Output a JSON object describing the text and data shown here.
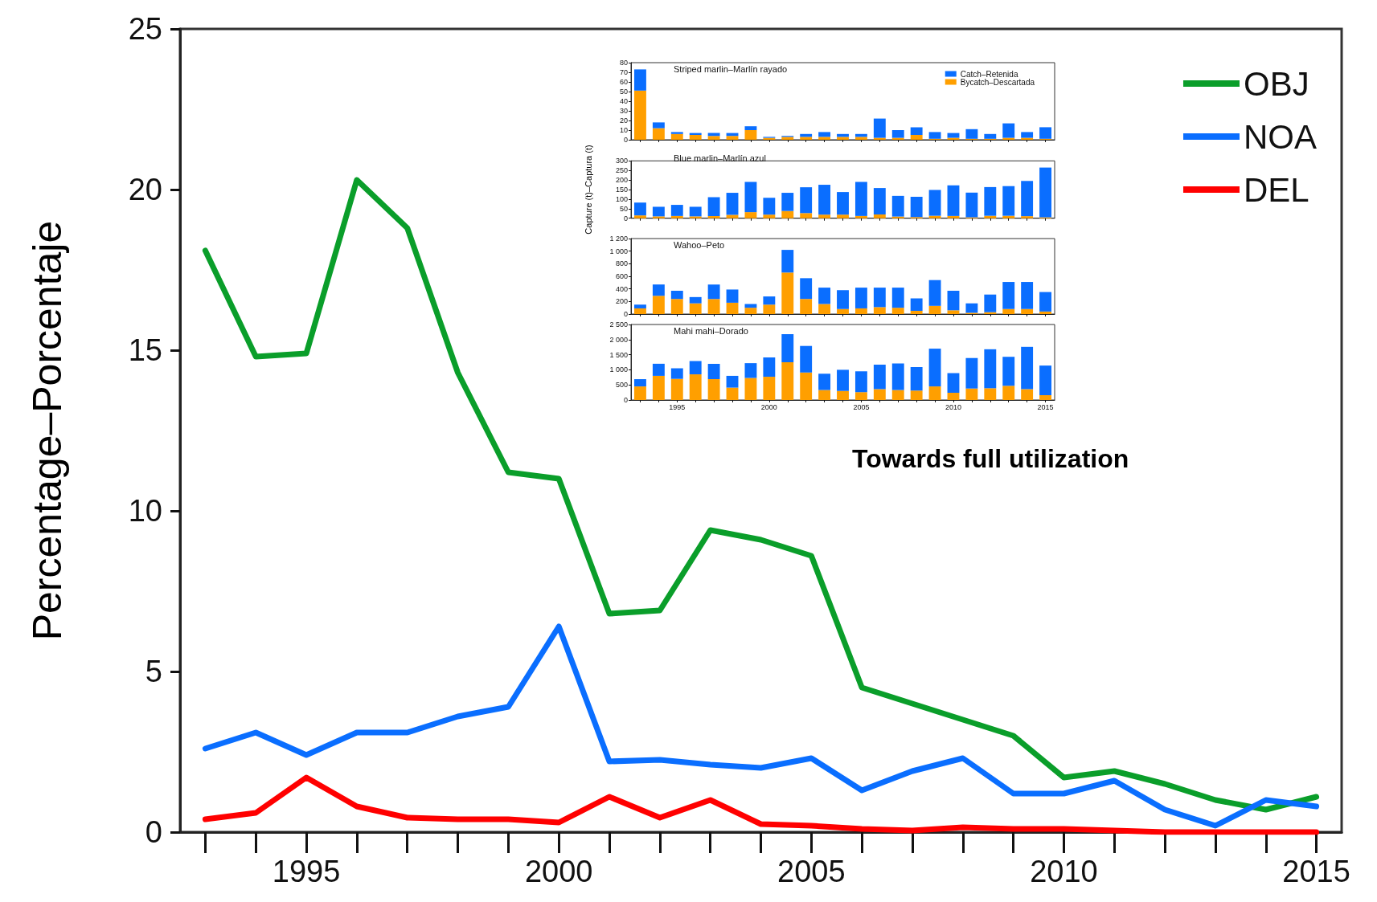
{
  "chart_data": [
    {
      "type": "line",
      "ylabel": "Percentage–Porcentaje",
      "categories": [
        null,
        null,
        "1995",
        null,
        null,
        null,
        null,
        "2000",
        null,
        null,
        null,
        null,
        "2005",
        null,
        null,
        null,
        null,
        "2010",
        null,
        null,
        null,
        null,
        "2015"
      ],
      "series": [
        {
          "name": "OBJ",
          "color": "#0a9e2a",
          "values": [
            18.1,
            14.8,
            14.9,
            20.3,
            18.8,
            14.3,
            11.2,
            11.0,
            6.8,
            6.9,
            9.4,
            9.1,
            8.6,
            4.5,
            4.0,
            3.5,
            3.0,
            1.7,
            1.9,
            1.5,
            1.0,
            0.7,
            1.1
          ]
        },
        {
          "name": "NOA",
          "color": "#0a6eff",
          "values": [
            2.6,
            3.1,
            2.4,
            3.1,
            3.1,
            3.6,
            3.9,
            6.4,
            2.2,
            2.25,
            2.1,
            2.0,
            2.3,
            1.3,
            1.9,
            2.3,
            1.2,
            1.2,
            1.6,
            0.7,
            0.2,
            1.0,
            0.8
          ]
        },
        {
          "name": "DEL",
          "color": "#ff0000",
          "values": [
            0.4,
            0.6,
            1.7,
            0.8,
            0.45,
            0.4,
            0.4,
            0.3,
            1.1,
            0.45,
            1.0,
            0.25,
            0.2,
            0.1,
            0.05,
            0.15,
            0.1,
            0.1,
            0.05,
            0.0,
            0.0,
            0.0,
            0.0
          ]
        }
      ],
      "ylim": [
        0,
        25
      ],
      "yticks": [
        0,
        5,
        10,
        15,
        20,
        25
      ],
      "grid": false,
      "legend": "top right",
      "marker": "none",
      "line_style": "solid",
      "annotations": [
        "Towards full utilization"
      ]
    },
    {
      "type": "bar",
      "stacked": true,
      "title": "Striped marlin–Marlín rayado",
      "categories": [
        null,
        null,
        "1995",
        null,
        null,
        null,
        null,
        "2000",
        null,
        null,
        null,
        null,
        "2005",
        null,
        null,
        null,
        null,
        "2010",
        null,
        null,
        null,
        null,
        "2015"
      ],
      "series": [
        {
          "name": "Bycatch–Descartada",
          "color": "#ff9f00",
          "values": [
            51,
            12,
            6,
            5,
            4,
            4,
            10,
            2,
            3,
            3,
            3,
            3,
            3,
            2,
            2,
            5,
            1,
            2,
            1,
            1,
            2,
            2,
            1
          ]
        },
        {
          "name": "Catch–Retenida",
          "color": "#0a6eff",
          "values": [
            22,
            6,
            2,
            2,
            3,
            3,
            4,
            1,
            1,
            3,
            5,
            3,
            3,
            20,
            8,
            8,
            7,
            5,
            10,
            5,
            15,
            6,
            12
          ]
        }
      ],
      "ylim": [
        0,
        80
      ],
      "yticks": [
        0,
        10,
        20,
        30,
        40,
        50,
        60,
        70,
        80
      ],
      "grid": false,
      "legend": "top right",
      "tick_labels": "y"
    },
    {
      "type": "bar",
      "stacked": true,
      "title": "Blue marlin–Marlín azul",
      "ylabel": "Capture (t)–Captura (t)",
      "categories": [
        null,
        null,
        "1995",
        null,
        null,
        null,
        null,
        "2000",
        null,
        null,
        null,
        null,
        "2005",
        null,
        null,
        null,
        null,
        "2010",
        null,
        null,
        null,
        null,
        "2015"
      ],
      "series": [
        {
          "color": "#ff9f00",
          "values": [
            15,
            10,
            12,
            10,
            12,
            18,
            32,
            19,
            38,
            27,
            19,
            19,
            12,
            20,
            9,
            6,
            13,
            12,
            5,
            13,
            13,
            11,
            5
          ]
        },
        {
          "color": "#0a6eff",
          "values": [
            67,
            50,
            58,
            50,
            98,
            115,
            158,
            88,
            95,
            135,
            156,
            118,
            178,
            138,
            108,
            106,
            135,
            160,
            129,
            150,
            155,
            184,
            260
          ]
        }
      ],
      "ylim": [
        0,
        300
      ],
      "yticks": [
        0,
        50,
        100,
        150,
        200,
        250,
        300
      ],
      "grid": false,
      "tick_labels": "y"
    },
    {
      "type": "bar",
      "stacked": true,
      "title": "Wahoo–Peto",
      "categories": [
        null,
        null,
        "1995",
        null,
        null,
        null,
        null,
        "2000",
        null,
        null,
        null,
        null,
        "2005",
        null,
        null,
        null,
        null,
        "2010",
        null,
        null,
        null,
        null,
        "2015"
      ],
      "series": [
        {
          "color": "#ff9f00",
          "values": [
            90,
            290,
            240,
            170,
            240,
            180,
            100,
            150,
            660,
            240,
            160,
            80,
            90,
            110,
            100,
            50,
            130,
            60,
            20,
            30,
            80,
            80,
            40
          ]
        },
        {
          "color": "#0a6eff",
          "values": [
            60,
            180,
            130,
            100,
            230,
            210,
            60,
            130,
            360,
            330,
            260,
            300,
            330,
            310,
            320,
            200,
            410,
            310,
            150,
            280,
            430,
            430,
            310
          ]
        }
      ],
      "ylim": [
        0,
        1200
      ],
      "yticks": [
        0,
        200,
        400,
        600,
        800,
        {
          "value": 1000,
          "label": "1 000"
        },
        {
          "value": 1200,
          "label": "1 200"
        }
      ],
      "grid": false,
      "tick_labels": "y"
    },
    {
      "type": "bar",
      "stacked": true,
      "title": "Mahi mahi–Dorado",
      "categories": [
        null,
        null,
        "1995",
        null,
        null,
        null,
        null,
        "2000",
        null,
        null,
        null,
        null,
        "2005",
        null,
        null,
        null,
        null,
        "2010",
        null,
        null,
        null,
        null,
        "2015"
      ],
      "series": [
        {
          "color": "#ff9f00",
          "values": [
            450,
            800,
            700,
            850,
            690,
            410,
            730,
            770,
            1250,
            910,
            330,
            300,
            260,
            360,
            330,
            310,
            450,
            240,
            380,
            390,
            470,
            360,
            160
          ]
        },
        {
          "color": "#0a6eff",
          "values": [
            240,
            400,
            350,
            440,
            510,
            390,
            490,
            640,
            930,
            880,
            540,
            700,
            690,
            810,
            880,
            780,
            1250,
            650,
            1010,
            1290,
            960,
            1400,
            980
          ]
        }
      ],
      "ylim": [
        0,
        2500
      ],
      "yticks": [
        0,
        500,
        {
          "value": 1000,
          "label": "1 000"
        },
        {
          "value": 1500,
          "label": "1 500"
        },
        {
          "value": 2000,
          "label": "2 000"
        },
        {
          "value": 2500,
          "label": "2 500"
        }
      ],
      "grid": false
    }
  ]
}
